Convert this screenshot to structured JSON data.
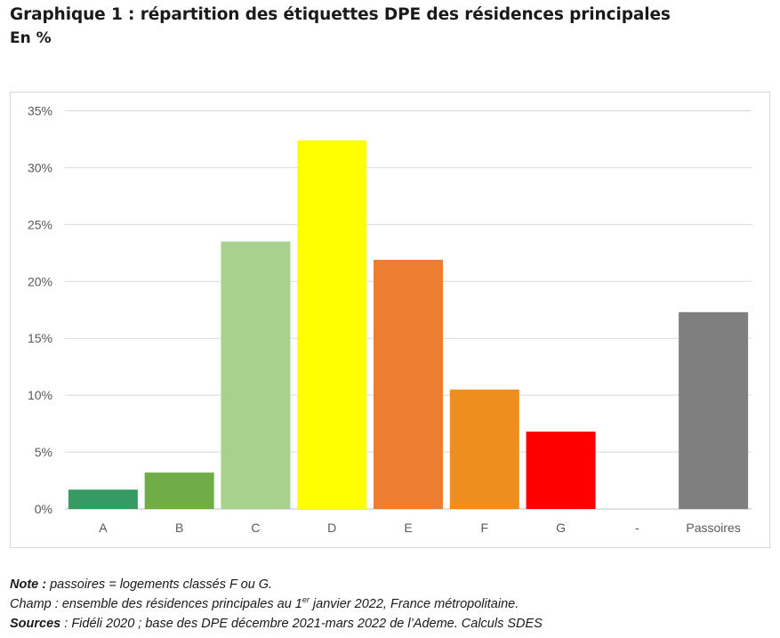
{
  "header": {
    "title": "Graphique 1 : répartition des étiquettes DPE des résidences principales",
    "subtitle": "En %"
  },
  "chart_data": {
    "type": "bar",
    "categories": [
      "A",
      "B",
      "C",
      "D",
      "E",
      "F",
      "G",
      "-",
      "Passoires"
    ],
    "values": [
      1.7,
      3.2,
      23.5,
      32.4,
      21.9,
      10.5,
      6.8,
      null,
      17.3
    ],
    "colors": [
      "#359b63",
      "#71ad47",
      "#a9d18e",
      "#ffff00",
      "#ed7d31",
      "#ed8e1f",
      "#ff0000",
      "#ffffff",
      "#7f7f7f"
    ],
    "yticks": [
      "0%",
      "5%",
      "10%",
      "15%",
      "20%",
      "25%",
      "30%",
      "35%"
    ],
    "ylim": [
      0,
      35
    ],
    "grid": true
  },
  "notes": {
    "note_label": "Note :",
    "note_text": " passoires = logements classés F ou G.",
    "champ_text": "Champ : ensemble des résidences principales au 1",
    "champ_sup": "er",
    "champ_rest": " janvier 2022, France métropolitaine.",
    "sources_label": "Sources",
    "sources_text": " : Fidéli 2020 ; base des DPE décembre 2021-mars 2022 de l’Ademe. Calculs SDES"
  }
}
